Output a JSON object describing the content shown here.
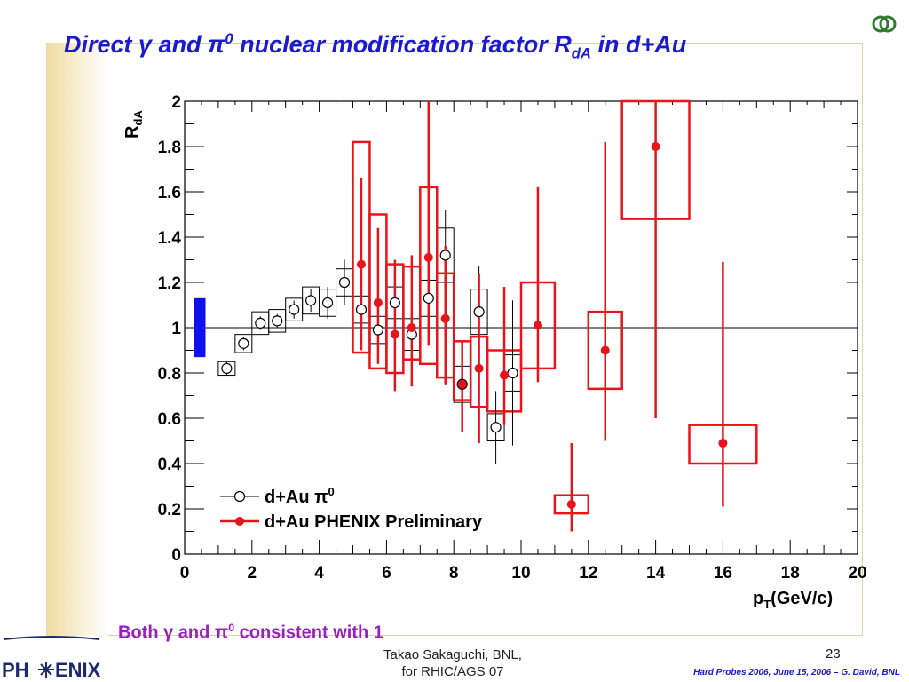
{
  "title": {
    "prefix": "Direct ",
    "gamma": "γ",
    "and": " and ",
    "pi": "π",
    "pi_sup": "0",
    "mid": " nuclear modification factor R",
    "sub": "dA",
    "suffix": " in d+Au"
  },
  "caption": {
    "prefix": "Both ",
    "gamma": "γ",
    "and": " and ",
    "pi": "π",
    "pi_sup": "0",
    "suffix": " consistent with 1"
  },
  "footer": {
    "author_line1": "Takao Sakaguchi, BNL,",
    "author_line2": "for RHIC/AGS 07",
    "page_number": "23",
    "reference": "Hard Probes 2006, June 15, 2006 – G. David, BNL",
    "logo_left": "PH",
    "logo_right": "ENIX"
  },
  "colors": {
    "title": "#1a1ad0",
    "caption": "#9a1fc0",
    "pi0_series": "#000000",
    "gamma_series": "#e8141a",
    "norm_box": "#1010ee",
    "logo": "#1a2a6c"
  },
  "chart_data": {
    "type": "scatter",
    "xlabel_main": "p",
    "xlabel_sub": "T",
    "xlabel_unit": "(GeV/c)",
    "ylabel_main": "R",
    "ylabel_sub": "dA",
    "xlim": [
      0,
      20
    ],
    "ylim": [
      0,
      2
    ],
    "x_ticks": [
      0,
      2,
      4,
      6,
      8,
      10,
      12,
      14,
      16,
      18,
      20
    ],
    "y_ticks": [
      "0",
      "0.2",
      "0.4",
      "0.6",
      "0.8",
      "1",
      "1.2",
      "1.4",
      "1.6",
      "1.8",
      "2"
    ],
    "reference_line": 1,
    "normalization_box": {
      "ylow": 0.87,
      "yhigh": 1.13
    },
    "legend_position": "bottom-left",
    "series": [
      {
        "name": "d+Au π",
        "name_sup": "0",
        "marker": "open-circle",
        "points": [
          {
            "x": 1.25,
            "y": 0.82,
            "err": 0.03,
            "sys": 0.03
          },
          {
            "x": 1.75,
            "y": 0.93,
            "err": 0.03,
            "sys": 0.04
          },
          {
            "x": 2.25,
            "y": 1.02,
            "err": 0.03,
            "sys": 0.05
          },
          {
            "x": 2.75,
            "y": 1.03,
            "err": 0.03,
            "sys": 0.05
          },
          {
            "x": 3.25,
            "y": 1.08,
            "err": 0.04,
            "sys": 0.05
          },
          {
            "x": 3.75,
            "y": 1.12,
            "err": 0.05,
            "sys": 0.06
          },
          {
            "x": 4.25,
            "y": 1.11,
            "err": 0.07,
            "sys": 0.06
          },
          {
            "x": 4.75,
            "y": 1.2,
            "err": 0.1,
            "sys": 0.06
          },
          {
            "x": 5.25,
            "y": 1.08,
            "err": 0.12,
            "sys": 0.06
          },
          {
            "x": 5.75,
            "y": 0.99,
            "err": 0.12,
            "sys": 0.06
          },
          {
            "x": 6.25,
            "y": 1.11,
            "err": 0.13,
            "sys": 0.07
          },
          {
            "x": 6.75,
            "y": 0.97,
            "err": 0.12,
            "sys": 0.07
          },
          {
            "x": 7.25,
            "y": 1.13,
            "err": 0.17,
            "sys": 0.08
          },
          {
            "x": 7.75,
            "y": 1.32,
            "err": 0.2,
            "sys": 0.12
          },
          {
            "x": 8.25,
            "y": 0.75,
            "err": 0.12,
            "sys": 0.08
          },
          {
            "x": 8.75,
            "y": 1.07,
            "err": 0.2,
            "sys": 0.1
          },
          {
            "x": 9.25,
            "y": 0.56,
            "err": 0.16,
            "sys": 0.06
          },
          {
            "x": 9.75,
            "y": 0.8,
            "err": 0.32,
            "sys": 0.08
          }
        ]
      },
      {
        "name": "d+Au PHENIX Preliminary",
        "marker": "filled-circle",
        "points": [
          {
            "x": 5.25,
            "y": 1.28,
            "elow": 0.38,
            "ehigh": 0.38,
            "blow": 0.89,
            "bhigh": 1.82,
            "w": 0.5
          },
          {
            "x": 5.75,
            "y": 1.11,
            "elow": 0.27,
            "ehigh": 0.33,
            "blow": 0.82,
            "bhigh": 1.5,
            "w": 0.5
          },
          {
            "x": 6.25,
            "y": 0.97,
            "elow": 0.25,
            "ehigh": 0.33,
            "blow": 0.8,
            "bhigh": 1.28,
            "w": 0.5
          },
          {
            "x": 6.75,
            "y": 1.0,
            "elow": 0.26,
            "ehigh": 0.32,
            "blow": 0.86,
            "bhigh": 1.27,
            "w": 0.5
          },
          {
            "x": 7.25,
            "y": 1.31,
            "elow": 0.39,
            "ehigh": 0.69,
            "blow": 0.84,
            "bhigh": 1.62,
            "w": 0.5
          },
          {
            "x": 7.75,
            "y": 1.04,
            "elow": 0.29,
            "ehigh": 0.32,
            "blow": 0.78,
            "bhigh": 1.24,
            "w": 0.5
          },
          {
            "x": 8.25,
            "y": 0.75,
            "elow": 0.21,
            "ehigh": 0.19,
            "blow": 0.68,
            "bhigh": 0.94,
            "w": 0.5
          },
          {
            "x": 8.75,
            "y": 0.82,
            "elow": 0.33,
            "ehigh": 0.42,
            "blow": 0.65,
            "bhigh": 0.96,
            "w": 0.5
          },
          {
            "x": 9.5,
            "y": 0.79,
            "elow": 0.22,
            "ehigh": 0.39,
            "blow": 0.63,
            "bhigh": 0.9,
            "w": 1.0
          },
          {
            "x": 10.5,
            "y": 1.01,
            "elow": 0.25,
            "ehigh": 0.61,
            "blow": 0.82,
            "bhigh": 1.2,
            "w": 1.0
          },
          {
            "x": 11.5,
            "y": 0.22,
            "elow": 0.12,
            "ehigh": 0.27,
            "blow": 0.18,
            "bhigh": 0.26,
            "w": 1.0
          },
          {
            "x": 12.5,
            "y": 0.9,
            "elow": 0.4,
            "ehigh": 0.92,
            "blow": 0.73,
            "bhigh": 1.07,
            "w": 1.0
          },
          {
            "x": 14.0,
            "y": 1.8,
            "elow": 1.2,
            "ehigh": 0.2,
            "blow": 1.48,
            "bhigh": 2.0,
            "w": 2.0
          },
          {
            "x": 16.0,
            "y": 0.49,
            "elow": 0.28,
            "ehigh": 0.8,
            "blow": 0.4,
            "bhigh": 0.57,
            "w": 2.0
          }
        ]
      }
    ]
  }
}
